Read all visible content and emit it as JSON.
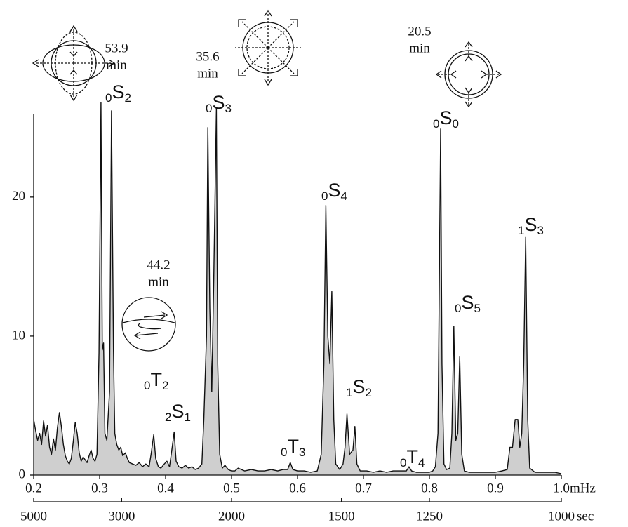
{
  "chart_data": {
    "type": "line",
    "x": [
      0.2,
      0.203,
      0.206,
      0.209,
      0.212,
      0.215,
      0.218,
      0.221,
      0.224,
      0.227,
      0.23,
      0.233,
      0.236,
      0.239,
      0.242,
      0.245,
      0.248,
      0.251,
      0.254,
      0.257,
      0.26,
      0.263,
      0.266,
      0.269,
      0.272,
      0.275,
      0.278,
      0.281,
      0.284,
      0.287,
      0.29,
      0.293,
      0.296,
      0.299,
      0.302,
      0.304,
      0.306,
      0.308,
      0.311,
      0.315,
      0.318,
      0.321,
      0.323,
      0.326,
      0.329,
      0.332,
      0.335,
      0.339,
      0.342,
      0.345,
      0.35,
      0.355,
      0.36,
      0.365,
      0.37,
      0.375,
      0.378,
      0.382,
      0.385,
      0.389,
      0.393,
      0.398,
      0.402,
      0.406,
      0.41,
      0.413,
      0.416,
      0.42,
      0.425,
      0.43,
      0.435,
      0.44,
      0.445,
      0.45,
      0.455,
      0.458,
      0.462,
      0.464,
      0.467,
      0.47,
      0.473,
      0.477,
      0.479,
      0.482,
      0.486,
      0.49,
      0.495,
      0.5,
      0.505,
      0.51,
      0.52,
      0.53,
      0.54,
      0.55,
      0.56,
      0.57,
      0.578,
      0.585,
      0.589,
      0.593,
      0.6,
      0.61,
      0.62,
      0.63,
      0.636,
      0.64,
      0.643,
      0.646,
      0.649,
      0.652,
      0.655,
      0.658,
      0.664,
      0.669,
      0.672,
      0.675,
      0.679,
      0.684,
      0.687,
      0.69,
      0.695,
      0.705,
      0.715,
      0.725,
      0.735,
      0.745,
      0.755,
      0.765,
      0.769,
      0.773,
      0.78,
      0.79,
      0.8,
      0.805,
      0.809,
      0.813,
      0.817,
      0.819,
      0.822,
      0.826,
      0.831,
      0.834,
      0.837,
      0.84,
      0.843,
      0.846,
      0.849,
      0.853,
      0.86,
      0.87,
      0.88,
      0.89,
      0.9,
      0.91,
      0.918,
      0.922,
      0.926,
      0.93,
      0.934,
      0.937,
      0.94,
      0.943,
      0.946,
      0.949,
      0.952,
      0.96,
      0.97,
      0.98,
      0.99,
      1.0
    ],
    "series": [
      {
        "color": "#111111",
        "fill": "#cfcfcf",
        "values": [
          4.0,
          3.2,
          2.5,
          3.0,
          2.2,
          3.9,
          2.8,
          3.6,
          2.0,
          1.5,
          2.6,
          1.8,
          3.4,
          4.5,
          3.5,
          2.2,
          1.4,
          1.0,
          0.8,
          1.2,
          2.4,
          3.8,
          3.0,
          1.6,
          1.0,
          1.3,
          1.1,
          0.9,
          1.4,
          1.8,
          1.2,
          1.0,
          1.5,
          8.8,
          26.8,
          9.0,
          9.5,
          3.0,
          2.5,
          6.0,
          26.2,
          9.0,
          3.0,
          2.2,
          1.8,
          2.0,
          1.4,
          1.6,
          1.2,
          0.9,
          0.8,
          0.7,
          0.9,
          0.6,
          0.8,
          0.6,
          1.5,
          2.9,
          1.2,
          0.6,
          0.5,
          0.8,
          1.0,
          0.6,
          2.0,
          3.1,
          1.0,
          0.6,
          0.5,
          0.7,
          0.5,
          0.6,
          0.4,
          0.5,
          0.8,
          4.0,
          10.0,
          25.0,
          12.0,
          6.0,
          14.0,
          26.4,
          8.0,
          1.5,
          0.5,
          0.7,
          0.4,
          0.3,
          0.3,
          0.5,
          0.3,
          0.4,
          0.3,
          0.3,
          0.4,
          0.3,
          0.4,
          0.4,
          0.9,
          0.4,
          0.3,
          0.3,
          0.2,
          0.3,
          1.5,
          8.0,
          19.4,
          10.0,
          8.0,
          13.2,
          4.0,
          0.8,
          0.4,
          0.8,
          2.0,
          4.4,
          1.5,
          1.8,
          3.5,
          0.8,
          0.3,
          0.3,
          0.2,
          0.3,
          0.2,
          0.3,
          0.3,
          0.3,
          0.6,
          0.3,
          0.2,
          0.2,
          0.2,
          0.3,
          0.6,
          3.0,
          24.9,
          8.0,
          0.8,
          0.4,
          0.5,
          3.0,
          10.7,
          2.5,
          3.0,
          8.5,
          1.5,
          0.3,
          0.2,
          0.2,
          0.2,
          0.2,
          0.2,
          0.3,
          0.4,
          2.0,
          2.0,
          4.0,
          4.0,
          2.0,
          3.0,
          8.0,
          17.1,
          4.0,
          0.5,
          0.2,
          0.2,
          0.2,
          0.2,
          0.1
        ]
      }
    ],
    "xlim": [
      0.2,
      1
    ],
    "xticks": [
      0.2,
      0.3,
      0.4,
      0.5,
      0.6,
      0.7,
      0.8,
      0.9,
      {
        "value": 1,
        "label": "1.0"
      }
    ],
    "xlabel": "mHz",
    "x2ticks": [
      5000,
      3000,
      2000,
      1500,
      1250,
      1000
    ],
    "x2label": "sec",
    "ylim": [
      0,
      26
    ],
    "yticks": [
      0,
      10,
      20
    ],
    "modes": [
      {
        "sub": "0",
        "letter": "S",
        "index": "2"
      },
      {
        "sub": "0",
        "letter": "S",
        "index": "3"
      },
      {
        "sub": "0",
        "letter": "S",
        "index": "4"
      },
      {
        "sub": "0",
        "letter": "S",
        "index": "0"
      },
      {
        "sub": "1",
        "letter": "S",
        "index": "3"
      },
      {
        "sub": "0",
        "letter": "S",
        "index": "5"
      },
      {
        "sub": "1",
        "letter": "S",
        "index": "2"
      },
      {
        "sub": "0",
        "letter": "T",
        "index": "2"
      },
      {
        "sub": "2",
        "letter": "S",
        "index": "1"
      },
      {
        "sub": "0",
        "letter": "T",
        "index": "3"
      },
      {
        "sub": "0",
        "letter": "T",
        "index": "4"
      }
    ],
    "periods": [
      {
        "value": "53.9",
        "unit": "min"
      },
      {
        "value": "35.6",
        "unit": "min"
      },
      {
        "value": "20.5",
        "unit": "min"
      },
      {
        "value": "44.2",
        "unit": "min"
      }
    ]
  }
}
